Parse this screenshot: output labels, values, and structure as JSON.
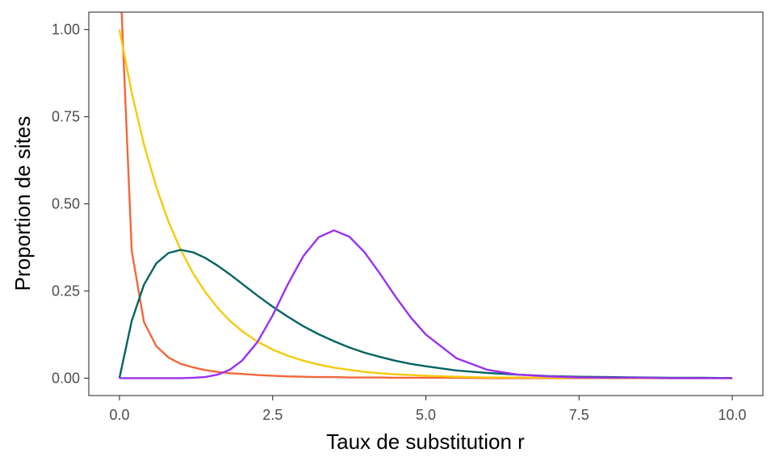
{
  "chart_data": {
    "type": "line",
    "title": "",
    "xlabel": "Taux de substitution r",
    "ylabel": "Proportion de sites",
    "xlim": [
      -0.5,
      10.5
    ],
    "ylim": [
      -0.05,
      1.05
    ],
    "grid": false,
    "x_ticks": [
      0,
      2.5,
      5,
      7.5,
      10
    ],
    "x_tick_labels": [
      "0.0",
      "2.5",
      "5.0",
      "7.5",
      "10.0"
    ],
    "y_ticks": [
      0,
      0.25,
      0.5,
      0.75,
      1
    ],
    "y_tick_labels": [
      "0.00",
      "0.25",
      "0.50",
      "0.75",
      "1.00"
    ],
    "x": [
      0,
      0.2,
      0.4,
      0.6,
      0.8,
      1,
      1.2,
      1.4,
      1.6,
      1.8,
      2,
      2.25,
      2.5,
      2.75,
      3,
      3.25,
      3.5,
      3.75,
      4,
      4.25,
      4.5,
      4.75,
      5,
      5.5,
      6,
      6.5,
      7,
      7.5,
      8,
      8.5,
      9,
      9.5,
      10
    ],
    "series": [
      {
        "color": "#F2673A",
        "values": [
          1.2,
          0.366,
          0.161,
          0.092,
          0.059,
          0.041,
          0.031,
          0.023,
          0.018,
          0.014,
          0.012,
          0.009,
          0.007,
          0.005,
          0.004,
          0.003,
          0.003,
          0.002,
          0.002,
          0.002,
          0.001,
          0.001,
          0.001,
          0.001,
          0.0,
          0.0,
          0.0,
          0.0,
          0.0,
          0.0,
          0.0,
          0.0,
          0.0
        ]
      },
      {
        "color": "#F7C90A",
        "values": [
          1.0,
          0.819,
          0.67,
          0.549,
          0.449,
          0.368,
          0.301,
          0.247,
          0.202,
          0.165,
          0.135,
          0.105,
          0.082,
          0.064,
          0.05,
          0.039,
          0.03,
          0.024,
          0.018,
          0.014,
          0.011,
          0.009,
          0.007,
          0.004,
          0.002,
          0.002,
          0.001,
          0.001,
          0.0,
          0.0,
          0.0,
          0.0,
          0.0
        ]
      },
      {
        "color": "#006460",
        "values": [
          0.0,
          0.164,
          0.268,
          0.329,
          0.359,
          0.368,
          0.361,
          0.345,
          0.323,
          0.298,
          0.271,
          0.237,
          0.205,
          0.176,
          0.149,
          0.126,
          0.106,
          0.088,
          0.073,
          0.061,
          0.05,
          0.041,
          0.034,
          0.022,
          0.015,
          0.01,
          0.006,
          0.004,
          0.003,
          0.002,
          0.001,
          0.001,
          0.0
        ]
      },
      {
        "color": "#9B30F0",
        "values": [
          0.0,
          0.0,
          0.0,
          0.0,
          0.0,
          0.0,
          0.001,
          0.003,
          0.01,
          0.024,
          0.05,
          0.103,
          0.18,
          0.27,
          0.35,
          0.404,
          0.424,
          0.406,
          0.361,
          0.3,
          0.235,
          0.175,
          0.125,
          0.057,
          0.024,
          0.01,
          0.005,
          0.002,
          0.001,
          0.001,
          0.0,
          0.0,
          0.0
        ]
      }
    ]
  }
}
